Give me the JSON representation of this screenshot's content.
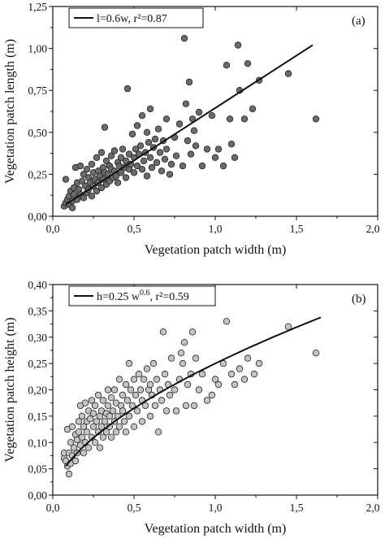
{
  "chart_data": [
    {
      "type": "scatter",
      "panel_label": "(a)",
      "xlabel": "Vegetation patch width (m)",
      "ylabel": "Vegetation patch length (m)",
      "xlim": [
        0,
        2
      ],
      "ylim": [
        0,
        1.25
      ],
      "xticks": [
        "0,0",
        "0,5",
        "1,0",
        "1,5",
        "2,0"
      ],
      "yticks": [
        "0,00",
        "0,25",
        "0,50",
        "0,75",
        "1,00",
        "1,25"
      ],
      "legend": {
        "text": "l=0.6w, r²=0.87",
        "placement": "top-left"
      },
      "fit_line": {
        "x": [
          0.08,
          1.6
        ],
        "y": [
          0.07,
          1.02
        ]
      },
      "marker_color": "#6b6b6b",
      "points": [
        [
          0.07,
          0.06
        ],
        [
          0.08,
          0.08
        ],
        [
          0.08,
          0.22
        ],
        [
          0.09,
          0.1
        ],
        [
          0.1,
          0.12
        ],
        [
          0.1,
          0.07
        ],
        [
          0.11,
          0.15
        ],
        [
          0.12,
          0.09
        ],
        [
          0.12,
          0.05
        ],
        [
          0.13,
          0.13
        ],
        [
          0.13,
          0.17
        ],
        [
          0.14,
          0.29
        ],
        [
          0.15,
          0.1
        ],
        [
          0.15,
          0.2
        ],
        [
          0.16,
          0.16
        ],
        [
          0.17,
          0.3
        ],
        [
          0.17,
          0.13
        ],
        [
          0.18,
          0.21
        ],
        [
          0.19,
          0.25
        ],
        [
          0.19,
          0.11
        ],
        [
          0.2,
          0.18
        ],
        [
          0.21,
          0.28
        ],
        [
          0.21,
          0.14
        ],
        [
          0.22,
          0.23
        ],
        [
          0.22,
          0.16
        ],
        [
          0.23,
          0.2
        ],
        [
          0.24,
          0.31
        ],
        [
          0.24,
          0.12
        ],
        [
          0.25,
          0.26
        ],
        [
          0.25,
          0.18
        ],
        [
          0.26,
          0.22
        ],
        [
          0.27,
          0.35
        ],
        [
          0.27,
          0.15
        ],
        [
          0.28,
          0.27
        ],
        [
          0.28,
          0.2
        ],
        [
          0.29,
          0.24
        ],
        [
          0.3,
          0.38
        ],
        [
          0.3,
          0.17
        ],
        [
          0.31,
          0.29
        ],
        [
          0.31,
          0.22
        ],
        [
          0.32,
          0.26
        ],
        [
          0.32,
          0.53
        ],
        [
          0.33,
          0.33
        ],
        [
          0.33,
          0.19
        ],
        [
          0.34,
          0.25
        ],
        [
          0.35,
          0.3
        ],
        [
          0.35,
          0.21
        ],
        [
          0.36,
          0.28
        ],
        [
          0.36,
          0.36
        ],
        [
          0.37,
          0.23
        ],
        [
          0.38,
          0.27
        ],
        [
          0.38,
          0.39
        ],
        [
          0.39,
          0.24
        ],
        [
          0.4,
          0.32
        ],
        [
          0.4,
          0.2
        ],
        [
          0.41,
          0.3
        ],
        [
          0.42,
          0.35
        ],
        [
          0.42,
          0.26
        ],
        [
          0.43,
          0.4
        ],
        [
          0.44,
          0.29
        ],
        [
          0.45,
          0.33
        ],
        [
          0.45,
          0.23
        ],
        [
          0.46,
          0.76
        ],
        [
          0.47,
          0.37
        ],
        [
          0.47,
          0.28
        ],
        [
          0.48,
          0.31
        ],
        [
          0.49,
          0.49
        ],
        [
          0.5,
          0.35
        ],
        [
          0.5,
          0.26
        ],
        [
          0.51,
          0.4
        ],
        [
          0.52,
          0.3
        ],
        [
          0.52,
          0.54
        ],
        [
          0.53,
          0.37
        ],
        [
          0.54,
          0.42
        ],
        [
          0.55,
          0.28
        ],
        [
          0.55,
          0.6
        ],
        [
          0.56,
          0.33
        ],
        [
          0.57,
          0.38
        ],
        [
          0.58,
          0.5
        ],
        [
          0.58,
          0.24
        ],
        [
          0.59,
          0.44
        ],
        [
          0.6,
          0.35
        ],
        [
          0.6,
          0.64
        ],
        [
          0.61,
          0.29
        ],
        [
          0.62,
          0.41
        ],
        [
          0.63,
          0.46
        ],
        [
          0.64,
          0.32
        ],
        [
          0.65,
          0.52
        ],
        [
          0.66,
          0.38
        ],
        [
          0.67,
          0.27
        ],
        [
          0.68,
          0.45
        ],
        [
          0.69,
          0.34
        ],
        [
          0.7,
          0.58
        ],
        [
          0.7,
          0.4
        ],
        [
          0.72,
          0.25
        ],
        [
          0.73,
          0.31
        ],
        [
          0.75,
          0.47
        ],
        [
          0.76,
          0.36
        ],
        [
          0.78,
          0.55
        ],
        [
          0.8,
          0.3
        ],
        [
          0.81,
          1.06
        ],
        [
          0.82,
          0.67
        ],
        [
          0.83,
          0.45
        ],
        [
          0.84,
          0.8
        ],
        [
          0.85,
          0.37
        ],
        [
          0.86,
          0.58
        ],
        [
          0.87,
          0.51
        ],
        [
          0.88,
          0.42
        ],
        [
          0.9,
          0.62
        ],
        [
          0.92,
          0.3
        ],
        [
          0.95,
          0.4
        ],
        [
          0.98,
          0.6
        ],
        [
          1.0,
          0.35
        ],
        [
          1.02,
          0.4
        ],
        [
          1.05,
          0.3
        ],
        [
          1.07,
          0.9
        ],
        [
          1.09,
          0.58
        ],
        [
          1.1,
          0.43
        ],
        [
          1.12,
          0.35
        ],
        [
          1.14,
          1.02
        ],
        [
          1.15,
          0.75
        ],
        [
          1.18,
          0.58
        ],
        [
          1.2,
          0.91
        ],
        [
          1.23,
          0.64
        ],
        [
          1.27,
          0.81
        ],
        [
          1.45,
          0.85
        ],
        [
          1.62,
          0.58
        ]
      ]
    },
    {
      "type": "scatter",
      "panel_label": "(b)",
      "xlabel": "Vegetation patch width (m)",
      "ylabel": "Vegetation patch height (m)",
      "xlim": [
        0,
        2
      ],
      "ylim": [
        0,
        0.4
      ],
      "xticks": [
        "0,0",
        "0,5",
        "1,0",
        "1,5",
        "2,0"
      ],
      "yticks": [
        "0,00",
        "0,05",
        "0,10",
        "0,15",
        "0,20",
        "0,25",
        "0,30",
        "0,35",
        "0,40"
      ],
      "legend": {
        "text_main": "h=0.25 w",
        "text_sup": "0.6",
        "text_tail": ", r²=0.59",
        "placement": "top-left"
      },
      "fit_line": {
        "formula": "h=0.25 w^0.6",
        "x_range": [
          0.08,
          1.65
        ]
      },
      "marker_color": "#c4c4c4",
      "points": [
        [
          0.07,
          0.07
        ],
        [
          0.07,
          0.08
        ],
        [
          0.08,
          0.065
        ],
        [
          0.09,
          0.125
        ],
        [
          0.09,
          0.055
        ],
        [
          0.1,
          0.04
        ],
        [
          0.1,
          0.08
        ],
        [
          0.11,
          0.1
        ],
        [
          0.11,
          0.06
        ],
        [
          0.12,
          0.13
        ],
        [
          0.12,
          0.075
        ],
        [
          0.13,
          0.09
        ],
        [
          0.14,
          0.115
        ],
        [
          0.14,
          0.065
        ],
        [
          0.15,
          0.105
        ],
        [
          0.15,
          0.08
        ],
        [
          0.16,
          0.12
        ],
        [
          0.16,
          0.14
        ],
        [
          0.17,
          0.095
        ],
        [
          0.17,
          0.17
        ],
        [
          0.18,
          0.11
        ],
        [
          0.18,
          0.15
        ],
        [
          0.19,
          0.08
        ],
        [
          0.19,
          0.13
        ],
        [
          0.2,
          0.175
        ],
        [
          0.2,
          0.1
        ],
        [
          0.21,
          0.14
        ],
        [
          0.21,
          0.12
        ],
        [
          0.22,
          0.16
        ],
        [
          0.22,
          0.09
        ],
        [
          0.23,
          0.145
        ],
        [
          0.24,
          0.11
        ],
        [
          0.24,
          0.18
        ],
        [
          0.25,
          0.13
        ],
        [
          0.25,
          0.155
        ],
        [
          0.26,
          0.1
        ],
        [
          0.26,
          0.17
        ],
        [
          0.27,
          0.14
        ],
        [
          0.28,
          0.12
        ],
        [
          0.28,
          0.19
        ],
        [
          0.29,
          0.15
        ],
        [
          0.29,
          0.09
        ],
        [
          0.3,
          0.13
        ],
        [
          0.3,
          0.16
        ],
        [
          0.31,
          0.11
        ],
        [
          0.31,
          0.18
        ],
        [
          0.32,
          0.14
        ],
        [
          0.33,
          0.155
        ],
        [
          0.33,
          0.12
        ],
        [
          0.34,
          0.2
        ],
        [
          0.34,
          0.17
        ],
        [
          0.35,
          0.13
        ],
        [
          0.35,
          0.15
        ],
        [
          0.36,
          0.11
        ],
        [
          0.36,
          0.185
        ],
        [
          0.37,
          0.16
        ],
        [
          0.38,
          0.14
        ],
        [
          0.38,
          0.2
        ],
        [
          0.39,
          0.12
        ],
        [
          0.39,
          0.175
        ],
        [
          0.4,
          0.15
        ],
        [
          0.41,
          0.22
        ],
        [
          0.41,
          0.13
        ],
        [
          0.42,
          0.17
        ],
        [
          0.43,
          0.16
        ],
        [
          0.43,
          0.19
        ],
        [
          0.44,
          0.14
        ],
        [
          0.45,
          0.21
        ],
        [
          0.45,
          0.12
        ],
        [
          0.46,
          0.18
        ],
        [
          0.47,
          0.25
        ],
        [
          0.47,
          0.15
        ],
        [
          0.48,
          0.2
        ],
        [
          0.49,
          0.17
        ],
        [
          0.5,
          0.13
        ],
        [
          0.5,
          0.22
        ],
        [
          0.51,
          0.19
        ],
        [
          0.52,
          0.16
        ],
        [
          0.53,
          0.23
        ],
        [
          0.54,
          0.2
        ],
        [
          0.55,
          0.14
        ],
        [
          0.55,
          0.18
        ],
        [
          0.56,
          0.22
        ],
        [
          0.57,
          0.17
        ],
        [
          0.58,
          0.24
        ],
        [
          0.59,
          0.2
        ],
        [
          0.6,
          0.15
        ],
        [
          0.6,
          0.21
        ],
        [
          0.61,
          0.19
        ],
        [
          0.62,
          0.25
        ],
        [
          0.63,
          0.17
        ],
        [
          0.64,
          0.22
        ],
        [
          0.65,
          0.12
        ],
        [
          0.66,
          0.2
        ],
        [
          0.67,
          0.18
        ],
        [
          0.68,
          0.31
        ],
        [
          0.69,
          0.23
        ],
        [
          0.7,
          0.16
        ],
        [
          0.71,
          0.21
        ],
        [
          0.72,
          0.19
        ],
        [
          0.73,
          0.26
        ],
        [
          0.75,
          0.2
        ],
        [
          0.76,
          0.16
        ],
        [
          0.78,
          0.22
        ],
        [
          0.79,
          0.27
        ],
        [
          0.8,
          0.25
        ],
        [
          0.81,
          0.29
        ],
        [
          0.82,
          0.17
        ],
        [
          0.83,
          0.21
        ],
        [
          0.85,
          0.23
        ],
        [
          0.86,
          0.31
        ],
        [
          0.87,
          0.17
        ],
        [
          0.88,
          0.26
        ],
        [
          0.9,
          0.2
        ],
        [
          0.92,
          0.23
        ],
        [
          0.95,
          0.18
        ],
        [
          0.98,
          0.19
        ],
        [
          1.0,
          0.22
        ],
        [
          1.02,
          0.21
        ],
        [
          1.05,
          0.25
        ],
        [
          1.07,
          0.33
        ],
        [
          1.1,
          0.23
        ],
        [
          1.12,
          0.21
        ],
        [
          1.15,
          0.24
        ],
        [
          1.18,
          0.22
        ],
        [
          1.2,
          0.26
        ],
        [
          1.24,
          0.23
        ],
        [
          1.27,
          0.25
        ],
        [
          1.45,
          0.32
        ],
        [
          1.62,
          0.27
        ]
      ]
    }
  ]
}
